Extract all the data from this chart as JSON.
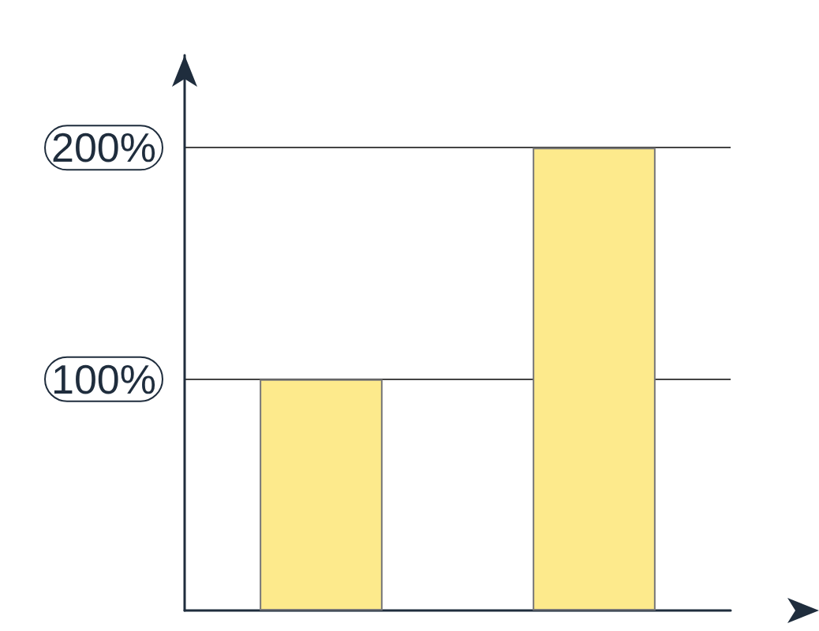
{
  "chart_data": {
    "type": "bar",
    "categories": [
      null,
      null
    ],
    "series": [
      {
        "color": "#fdea8c",
        "values": [
          100,
          200
        ]
      }
    ],
    "ylim": [
      0,
      240
    ],
    "yticks": [
      {
        "value": 100,
        "label": "100%"
      },
      {
        "value": 200,
        "label": "200%"
      }
    ],
    "grid": "y"
  }
}
